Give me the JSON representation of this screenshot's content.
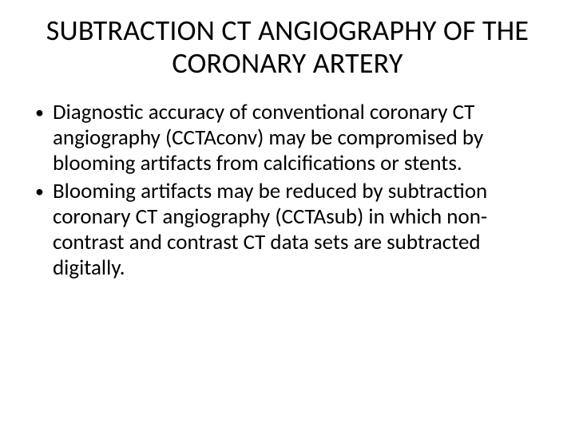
{
  "slide": {
    "background_color": "#ffffff",
    "text_color": "#000000",
    "font_family": "Calibri",
    "title": {
      "text": "SUBTRACTION CT ANGIOGRAPHY OF THE CORONARY ARTERY",
      "fontsize": 36,
      "weight": 400,
      "align": "center"
    },
    "bullets": [
      {
        "marker": "•",
        "text": "Diagnostic accuracy of conventional coronary CT angiography (CCTAconv) may be compromised by blooming artifacts from calcifications or stents."
      },
      {
        "marker": "•",
        "text": "Blooming artifacts may be reduced by subtraction coronary CT angiography (CCTAsub) in which non-contrast and contrast CT data sets are subtracted digitally."
      }
    ],
    "body_fontsize": 27,
    "bullet_color": "#000000"
  }
}
